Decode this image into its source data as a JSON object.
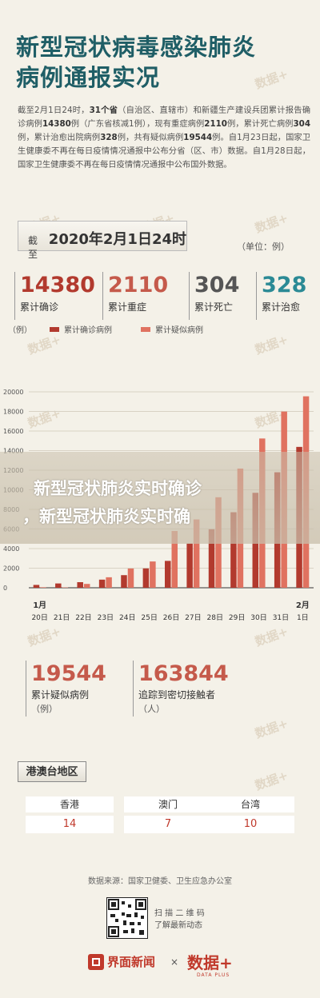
{
  "header": {
    "title_line1": "新型冠状病毒感染肺炎",
    "title_line2": "病例通报实况"
  },
  "watermark_text": "数据+",
  "intro": {
    "p1": "截至2月1日24时，",
    "p2": "31个省",
    "p3": "（自治区、直辖市）和新疆生产建设兵团累计报告确诊病例",
    "p4": "14380",
    "p5": "例（广东省核减1例），现有重症病例",
    "p6": "2110",
    "p7": "例，累计死亡病例",
    "p8": "304",
    "p9": "例，累计治愈出院病例",
    "p10": "328",
    "p11": "例，共有疑似病例",
    "p12": "19544",
    "p13": "例。自1月23日起，国家卫生健康委不再在每日疫情情况通报中公布分省（区、市）数据。自1月28日起，国家卫生健康委不再在每日疫情情况通报中公布国外数据。"
  },
  "date_box": {
    "prefix": "截至",
    "date": "2020年2月1日24时"
  },
  "unit": "（单位：例）",
  "stats": [
    {
      "num": "14380",
      "label": "累计确诊",
      "color": "#b23a2e"
    },
    {
      "num": "2110",
      "label": "累计重症",
      "color": "#c55a4b"
    },
    {
      "num": "304",
      "label": "累计死亡",
      "color": "#555555"
    },
    {
      "num": "328",
      "label": "累计治愈",
      "color": "#2b8a95"
    }
  ],
  "legend": {
    "unit": "（例）",
    "confirmed": "累计确诊病例",
    "suspected": "累计疑似病例",
    "confirmed_color": "#b23a2e",
    "suspected_color": "#e07260"
  },
  "chart_data": {
    "type": "bar",
    "categories": [
      "20日",
      "21日",
      "22日",
      "23日",
      "24日",
      "25日",
      "26日",
      "27日",
      "28日",
      "29日",
      "30日",
      "31日",
      "1日"
    ],
    "month_labels": [
      {
        "text": "1月",
        "index": 0
      },
      {
        "text": "2月",
        "index": 12
      }
    ],
    "series": [
      {
        "name": "累计确诊病例",
        "values": [
          291,
          440,
          571,
          830,
          1287,
          1975,
          2744,
          4515,
          5974,
          7711,
          9692,
          11791,
          14380
        ]
      },
      {
        "name": "累计疑似病例",
        "values": [
          54,
          37,
          393,
          1072,
          1965,
          2684,
          5794,
          6973,
          9239,
          12167,
          15238,
          17988,
          19544
        ]
      }
    ],
    "ylim": [
      0,
      20000
    ],
    "yticks": [
      "0",
      "2000",
      "4000",
      "6000",
      "8000",
      "10000",
      "12000",
      "14000",
      "16000",
      "18000",
      "20000"
    ],
    "grid": true
  },
  "big_stats": [
    {
      "num": "19544",
      "label": "累计疑似病例",
      "sub": "（例）"
    },
    {
      "num": "163844",
      "label": "追踪到密切接触者",
      "sub": "（人）"
    }
  ],
  "region": {
    "title": "港澳台地区",
    "items": [
      {
        "name": "香港",
        "value": "14"
      },
      {
        "name": "澳门",
        "value": "7"
      },
      {
        "name": "台湾",
        "value": "10"
      }
    ]
  },
  "source": "数据来源：国家卫健委、卫生应急办公室",
  "scan": {
    "line1": "扫 描 二 维 码",
    "line2": "了解最新动态"
  },
  "banner": {
    "line1": "新型冠状肺炎实时确诊",
    "line2": "，新型冠状肺炎实时确"
  },
  "footer": {
    "brand1": "界面新闻",
    "sep": "×",
    "brand2": "数据+",
    "brand2_sub": "DATA PLUS"
  }
}
